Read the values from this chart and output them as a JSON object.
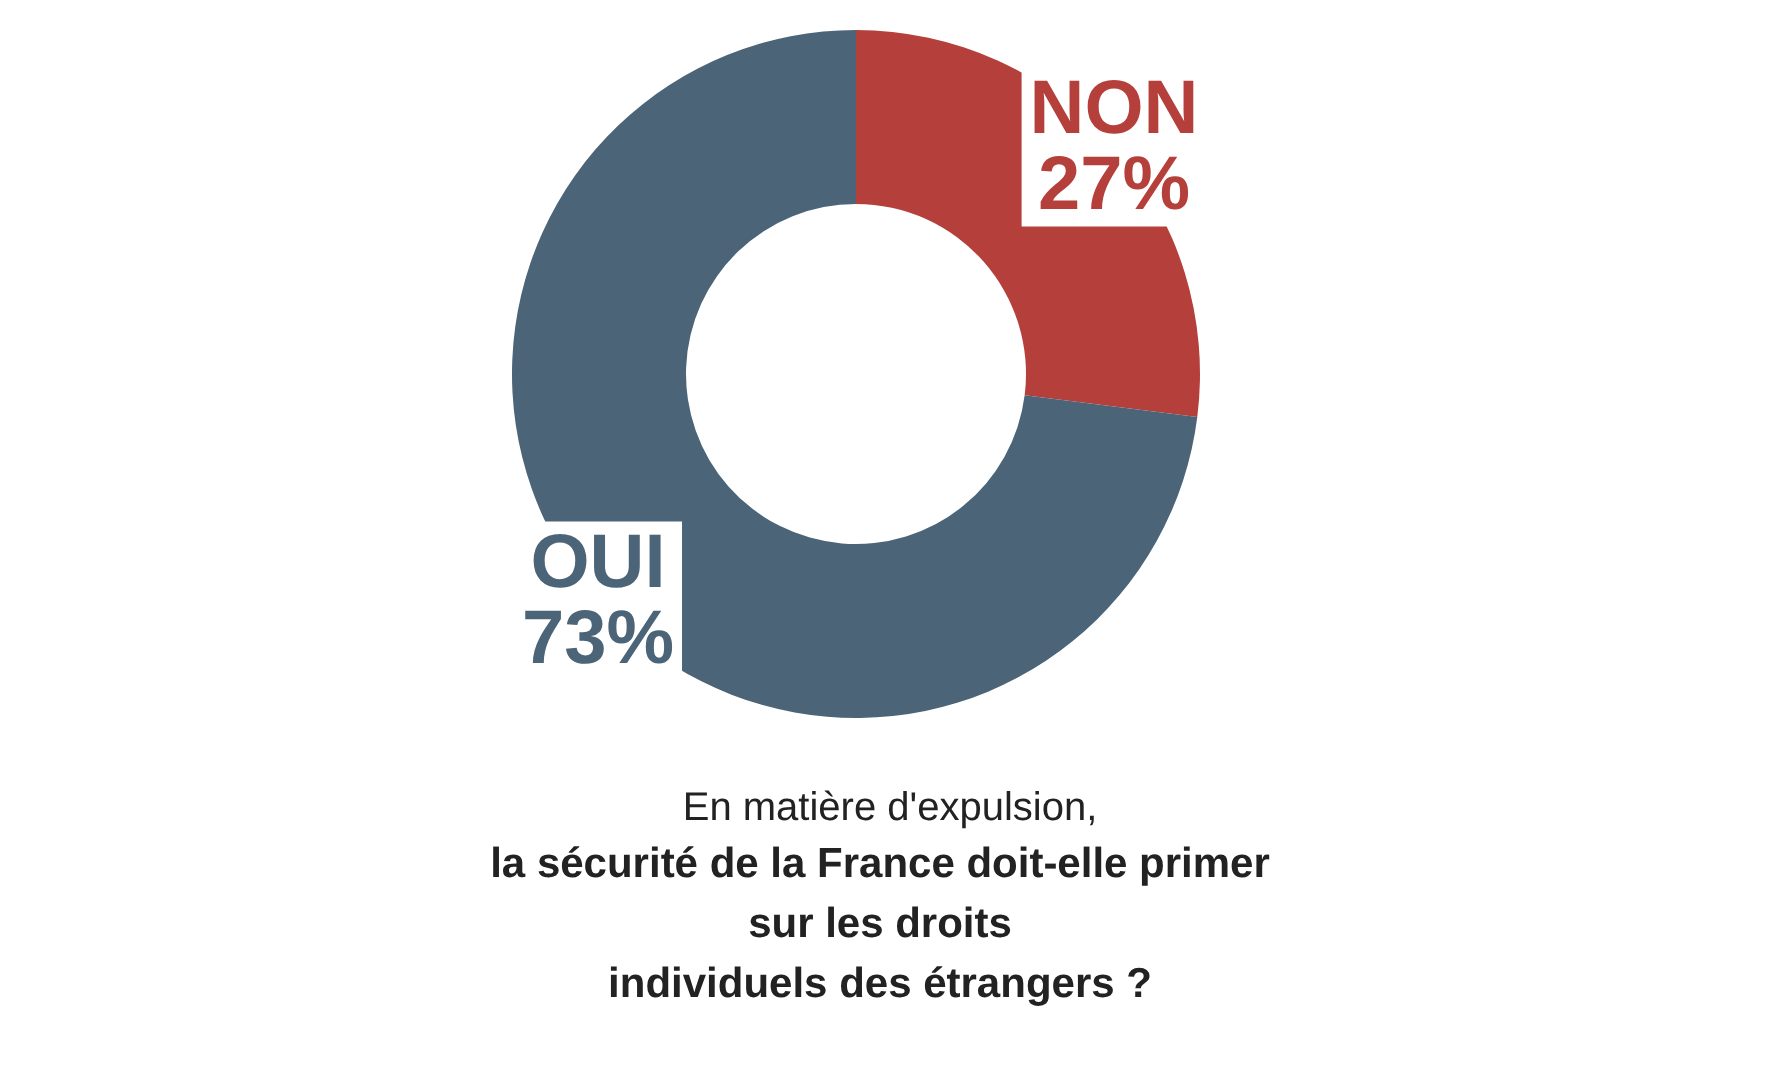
{
  "chart_data": {
    "type": "donut",
    "subtitle": "En matière d'expulsion,",
    "title": "la sécurité de la France doit-elle primer\nsur les droits\nindividuels des étrangers ?",
    "categories": [
      "NON",
      "OUI"
    ],
    "values": [
      27,
      73
    ],
    "value_labels": [
      "27%",
      "73%"
    ],
    "colors": [
      "#b5403b",
      "#4b6478"
    ]
  }
}
